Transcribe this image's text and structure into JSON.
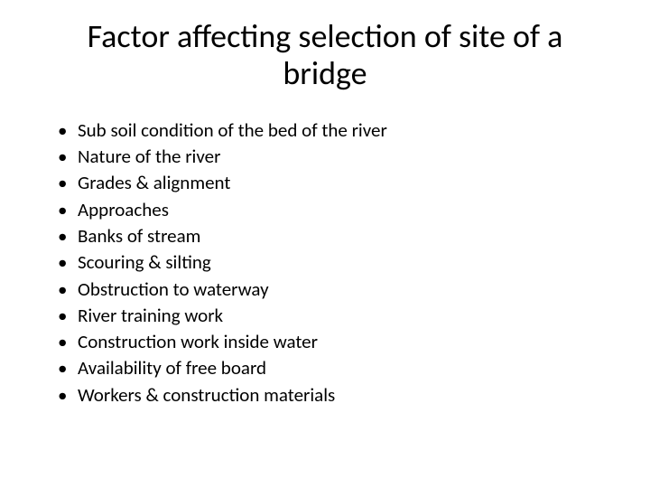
{
  "slide": {
    "title": "Factor affecting selection of site of a bridge",
    "title_fontsize": 36,
    "title_color": "#000000",
    "bullets": [
      "Sub soil condition of the bed of the river",
      "Nature of the river",
      "Grades & alignment",
      "Approaches",
      "Banks of stream",
      "Scouring & silting",
      "Obstruction to waterway",
      "River training work",
      "Construction work inside water",
      "Availability of free board",
      "Workers & construction materials"
    ],
    "bullet_fontsize": 21,
    "bullet_color": "#000000",
    "bullet_symbol": "•",
    "background_color": "#ffffff",
    "font_family": "Calibri"
  }
}
